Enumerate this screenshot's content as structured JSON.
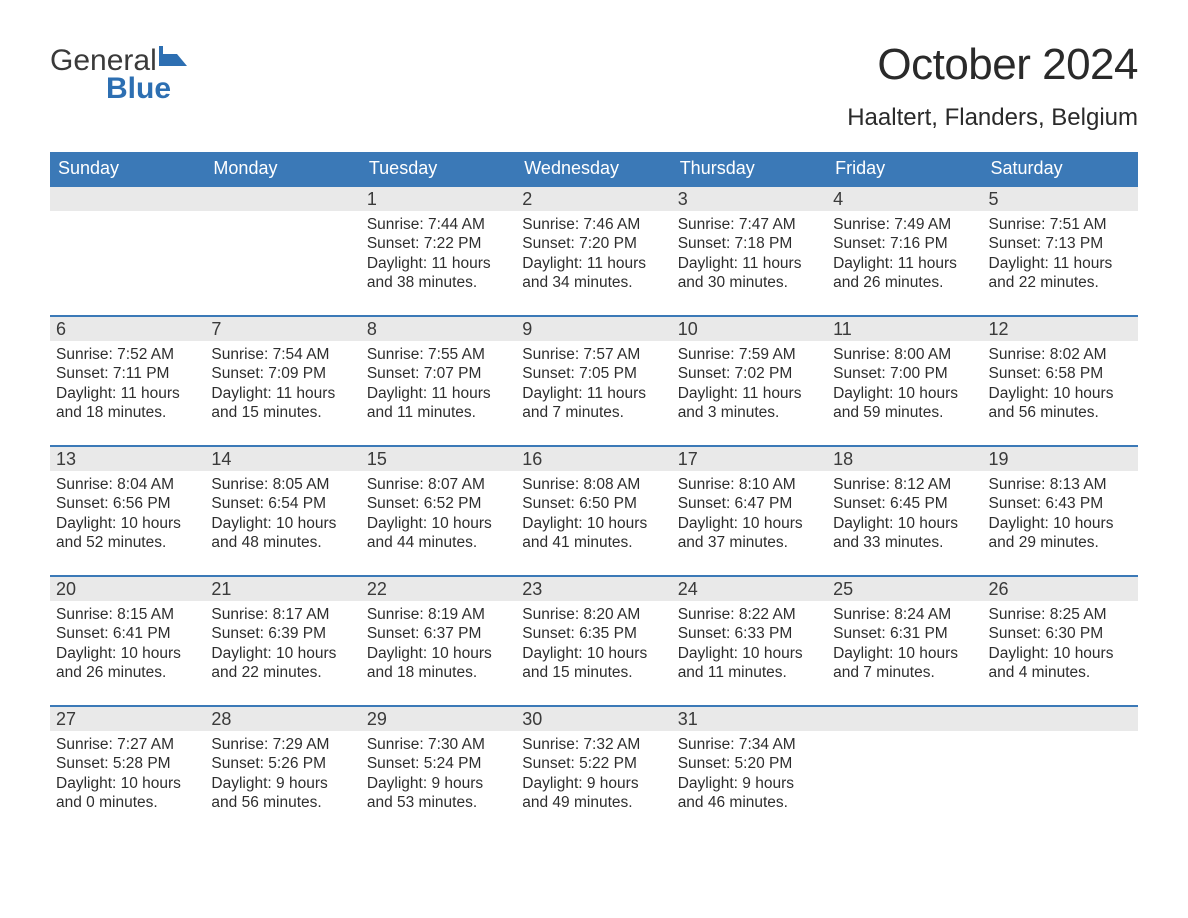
{
  "logo": {
    "line1": "General",
    "line2": "Blue",
    "flag_color": "#2d6fb2"
  },
  "header": {
    "month_title": "October 2024",
    "location": "Haaltert, Flanders, Belgium"
  },
  "colors": {
    "header_bg": "#3b79b7",
    "header_text": "#ffffff",
    "daynum_bg": "#e9e9e9",
    "body_text": "#2e2e2e",
    "row_border": "#3b79b7"
  },
  "typography": {
    "month_title_fontsize": 44,
    "location_fontsize": 24,
    "weekday_fontsize": 18,
    "daynum_fontsize": 18,
    "content_fontsize": 15.5
  },
  "calendar": {
    "type": "table",
    "weekdays": [
      "Sunday",
      "Monday",
      "Tuesday",
      "Wednesday",
      "Thursday",
      "Friday",
      "Saturday"
    ],
    "weeks": [
      [
        {
          "day": null
        },
        {
          "day": null
        },
        {
          "day": "1",
          "sunrise": "Sunrise: 7:44 AM",
          "sunset": "Sunset: 7:22 PM",
          "daylight1": "Daylight: 11 hours",
          "daylight2": "and 38 minutes."
        },
        {
          "day": "2",
          "sunrise": "Sunrise: 7:46 AM",
          "sunset": "Sunset: 7:20 PM",
          "daylight1": "Daylight: 11 hours",
          "daylight2": "and 34 minutes."
        },
        {
          "day": "3",
          "sunrise": "Sunrise: 7:47 AM",
          "sunset": "Sunset: 7:18 PM",
          "daylight1": "Daylight: 11 hours",
          "daylight2": "and 30 minutes."
        },
        {
          "day": "4",
          "sunrise": "Sunrise: 7:49 AM",
          "sunset": "Sunset: 7:16 PM",
          "daylight1": "Daylight: 11 hours",
          "daylight2": "and 26 minutes."
        },
        {
          "day": "5",
          "sunrise": "Sunrise: 7:51 AM",
          "sunset": "Sunset: 7:13 PM",
          "daylight1": "Daylight: 11 hours",
          "daylight2": "and 22 minutes."
        }
      ],
      [
        {
          "day": "6",
          "sunrise": "Sunrise: 7:52 AM",
          "sunset": "Sunset: 7:11 PM",
          "daylight1": "Daylight: 11 hours",
          "daylight2": "and 18 minutes."
        },
        {
          "day": "7",
          "sunrise": "Sunrise: 7:54 AM",
          "sunset": "Sunset: 7:09 PM",
          "daylight1": "Daylight: 11 hours",
          "daylight2": "and 15 minutes."
        },
        {
          "day": "8",
          "sunrise": "Sunrise: 7:55 AM",
          "sunset": "Sunset: 7:07 PM",
          "daylight1": "Daylight: 11 hours",
          "daylight2": "and 11 minutes."
        },
        {
          "day": "9",
          "sunrise": "Sunrise: 7:57 AM",
          "sunset": "Sunset: 7:05 PM",
          "daylight1": "Daylight: 11 hours",
          "daylight2": "and 7 minutes."
        },
        {
          "day": "10",
          "sunrise": "Sunrise: 7:59 AM",
          "sunset": "Sunset: 7:02 PM",
          "daylight1": "Daylight: 11 hours",
          "daylight2": "and 3 minutes."
        },
        {
          "day": "11",
          "sunrise": "Sunrise: 8:00 AM",
          "sunset": "Sunset: 7:00 PM",
          "daylight1": "Daylight: 10 hours",
          "daylight2": "and 59 minutes."
        },
        {
          "day": "12",
          "sunrise": "Sunrise: 8:02 AM",
          "sunset": "Sunset: 6:58 PM",
          "daylight1": "Daylight: 10 hours",
          "daylight2": "and 56 minutes."
        }
      ],
      [
        {
          "day": "13",
          "sunrise": "Sunrise: 8:04 AM",
          "sunset": "Sunset: 6:56 PM",
          "daylight1": "Daylight: 10 hours",
          "daylight2": "and 52 minutes."
        },
        {
          "day": "14",
          "sunrise": "Sunrise: 8:05 AM",
          "sunset": "Sunset: 6:54 PM",
          "daylight1": "Daylight: 10 hours",
          "daylight2": "and 48 minutes."
        },
        {
          "day": "15",
          "sunrise": "Sunrise: 8:07 AM",
          "sunset": "Sunset: 6:52 PM",
          "daylight1": "Daylight: 10 hours",
          "daylight2": "and 44 minutes."
        },
        {
          "day": "16",
          "sunrise": "Sunrise: 8:08 AM",
          "sunset": "Sunset: 6:50 PM",
          "daylight1": "Daylight: 10 hours",
          "daylight2": "and 41 minutes."
        },
        {
          "day": "17",
          "sunrise": "Sunrise: 8:10 AM",
          "sunset": "Sunset: 6:47 PM",
          "daylight1": "Daylight: 10 hours",
          "daylight2": "and 37 minutes."
        },
        {
          "day": "18",
          "sunrise": "Sunrise: 8:12 AM",
          "sunset": "Sunset: 6:45 PM",
          "daylight1": "Daylight: 10 hours",
          "daylight2": "and 33 minutes."
        },
        {
          "day": "19",
          "sunrise": "Sunrise: 8:13 AM",
          "sunset": "Sunset: 6:43 PM",
          "daylight1": "Daylight: 10 hours",
          "daylight2": "and 29 minutes."
        }
      ],
      [
        {
          "day": "20",
          "sunrise": "Sunrise: 8:15 AM",
          "sunset": "Sunset: 6:41 PM",
          "daylight1": "Daylight: 10 hours",
          "daylight2": "and 26 minutes."
        },
        {
          "day": "21",
          "sunrise": "Sunrise: 8:17 AM",
          "sunset": "Sunset: 6:39 PM",
          "daylight1": "Daylight: 10 hours",
          "daylight2": "and 22 minutes."
        },
        {
          "day": "22",
          "sunrise": "Sunrise: 8:19 AM",
          "sunset": "Sunset: 6:37 PM",
          "daylight1": "Daylight: 10 hours",
          "daylight2": "and 18 minutes."
        },
        {
          "day": "23",
          "sunrise": "Sunrise: 8:20 AM",
          "sunset": "Sunset: 6:35 PM",
          "daylight1": "Daylight: 10 hours",
          "daylight2": "and 15 minutes."
        },
        {
          "day": "24",
          "sunrise": "Sunrise: 8:22 AM",
          "sunset": "Sunset: 6:33 PM",
          "daylight1": "Daylight: 10 hours",
          "daylight2": "and 11 minutes."
        },
        {
          "day": "25",
          "sunrise": "Sunrise: 8:24 AM",
          "sunset": "Sunset: 6:31 PM",
          "daylight1": "Daylight: 10 hours",
          "daylight2": "and 7 minutes."
        },
        {
          "day": "26",
          "sunrise": "Sunrise: 8:25 AM",
          "sunset": "Sunset: 6:30 PM",
          "daylight1": "Daylight: 10 hours",
          "daylight2": "and 4 minutes."
        }
      ],
      [
        {
          "day": "27",
          "sunrise": "Sunrise: 7:27 AM",
          "sunset": "Sunset: 5:28 PM",
          "daylight1": "Daylight: 10 hours",
          "daylight2": "and 0 minutes."
        },
        {
          "day": "28",
          "sunrise": "Sunrise: 7:29 AM",
          "sunset": "Sunset: 5:26 PM",
          "daylight1": "Daylight: 9 hours",
          "daylight2": "and 56 minutes."
        },
        {
          "day": "29",
          "sunrise": "Sunrise: 7:30 AM",
          "sunset": "Sunset: 5:24 PM",
          "daylight1": "Daylight: 9 hours",
          "daylight2": "and 53 minutes."
        },
        {
          "day": "30",
          "sunrise": "Sunrise: 7:32 AM",
          "sunset": "Sunset: 5:22 PM",
          "daylight1": "Daylight: 9 hours",
          "daylight2": "and 49 minutes."
        },
        {
          "day": "31",
          "sunrise": "Sunrise: 7:34 AM",
          "sunset": "Sunset: 5:20 PM",
          "daylight1": "Daylight: 9 hours",
          "daylight2": "and 46 minutes."
        },
        {
          "day": null
        },
        {
          "day": null
        }
      ]
    ]
  }
}
